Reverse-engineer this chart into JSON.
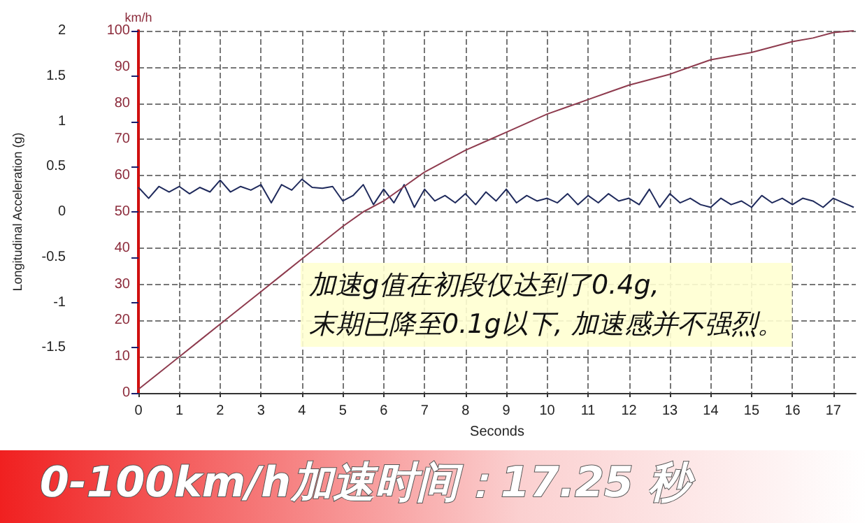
{
  "chart_data": {
    "type": "line",
    "title": "0-100km/h加速时间：17.25 秒",
    "xlabel": "Seconds",
    "ylabel": "Longitudinal Acceleration (g)",
    "y2label": "km/h",
    "annotations": [
      "加速g值在初段仅达到了0.4g,\n末期已降至0.1g以下, 加速感并不强烈。"
    ],
    "xlim": [
      0,
      17.55
    ],
    "xticks": [
      0,
      1,
      2,
      3,
      4,
      5,
      6,
      7,
      8,
      9,
      10,
      11,
      12,
      13,
      14,
      15,
      16,
      17
    ],
    "ylim": [
      -2,
      2
    ],
    "yticks": [
      {
        "value": -2,
        "label": null
      },
      -1.5,
      -1,
      -0.5,
      0,
      0.5,
      1,
      1.5,
      2
    ],
    "y2lim": [
      0,
      100
    ],
    "y2ticks": [
      0,
      10,
      20,
      30,
      40,
      50,
      60,
      70,
      80,
      90,
      100
    ],
    "grid": true,
    "marker": "none",
    "line_style": "solid",
    "series": [
      {
        "axis": "y",
        "color": "#1f2a5c",
        "x": [
          0,
          0.25,
          0.5,
          0.75,
          1,
          1.25,
          1.5,
          1.75,
          2,
          2.25,
          2.5,
          2.75,
          3,
          3.25,
          3.5,
          3.75,
          4,
          4.25,
          4.5,
          4.75,
          5,
          5.25,
          5.5,
          5.75,
          6,
          6.25,
          6.5,
          6.75,
          7,
          7.25,
          7.5,
          7.75,
          8,
          8.25,
          8.5,
          8.75,
          9,
          9.25,
          9.5,
          9.75,
          10,
          10.25,
          10.5,
          10.75,
          11,
          11.25,
          11.5,
          11.75,
          12,
          12.25,
          12.5,
          12.75,
          13,
          13.25,
          13.5,
          13.75,
          14,
          14.25,
          14.5,
          14.75,
          15,
          15.25,
          15.5,
          15.75,
          16,
          16.25,
          16.5,
          16.75,
          17,
          17.25,
          17.5
        ],
        "values": [
          0.27,
          0.15,
          0.28,
          0.22,
          0.28,
          0.2,
          0.27,
          0.22,
          0.35,
          0.22,
          0.28,
          0.24,
          0.3,
          0.1,
          0.3,
          0.24,
          0.36,
          0.27,
          0.26,
          0.28,
          0.12,
          0.18,
          0.3,
          0.08,
          0.25,
          0.1,
          0.3,
          0.05,
          0.25,
          0.12,
          0.18,
          0.1,
          0.2,
          0.08,
          0.22,
          0.12,
          0.25,
          0.1,
          0.18,
          0.12,
          0.15,
          0.1,
          0.2,
          0.08,
          0.18,
          0.1,
          0.2,
          0.12,
          0.15,
          0.08,
          0.25,
          0.05,
          0.2,
          0.1,
          0.15,
          0.08,
          0.05,
          0.15,
          0.08,
          0.12,
          0.05,
          0.18,
          0.1,
          0.15,
          0.08,
          0.15,
          0.12,
          0.05,
          0.15,
          0.1,
          0.05
        ]
      },
      {
        "axis": "y2",
        "color": "#8e3b4e",
        "x": [
          0,
          0.5,
          1,
          1.5,
          2,
          2.5,
          3,
          3.5,
          4,
          4.5,
          5,
          5.5,
          6,
          6.5,
          7,
          7.5,
          8,
          8.5,
          9,
          9.5,
          10,
          10.5,
          11,
          11.5,
          12,
          12.5,
          13,
          13.5,
          14,
          14.5,
          15,
          15.5,
          16,
          16.5,
          17,
          17.5
        ],
        "values": [
          1,
          5.5,
          10,
          14.5,
          19,
          23.5,
          28,
          32.5,
          37,
          41.5,
          46,
          50,
          53,
          57,
          61,
          64,
          67,
          69.5,
          72,
          74.5,
          77,
          79,
          81,
          83,
          85,
          86.5,
          88,
          90,
          92,
          93,
          94,
          95.5,
          97,
          98,
          99.5,
          100
        ]
      }
    ]
  }
}
